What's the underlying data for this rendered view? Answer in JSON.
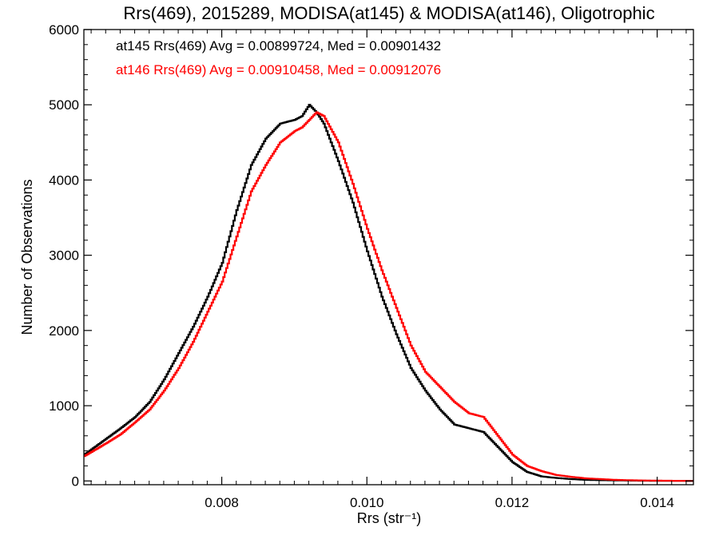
{
  "chart_data": {
    "type": "line",
    "title": "Rrs(469), 2015289, MODISA(at145) & MODISA(at146), Oligotrophic",
    "xlabel": "Rrs (str⁻¹)",
    "ylabel": "Number of Observations",
    "xlim": [
      0.0061,
      0.0145
    ],
    "ylim": [
      -50,
      6000
    ],
    "x_ticks": [
      "0.008",
      "0.010",
      "0.012",
      "0.014"
    ],
    "x_tick_values": [
      0.008,
      0.01,
      0.012,
      0.014
    ],
    "y_ticks": [
      "0",
      "1000",
      "2000",
      "3000",
      "4000",
      "5000",
      "6000"
    ],
    "y_tick_values": [
      0,
      1000,
      2000,
      3000,
      4000,
      5000,
      6000
    ],
    "grid": false,
    "legend_position": "top-left",
    "series": [
      {
        "name": "at145",
        "color": "#000000",
        "label": "at145 Rrs(469) Avg = 0.00899724, Med = 0.00901432",
        "x": [
          0.0061,
          0.0064,
          0.0066,
          0.0068,
          0.007,
          0.0072,
          0.0074,
          0.0076,
          0.0078,
          0.008,
          0.0082,
          0.0084,
          0.0086,
          0.0088,
          0.009,
          0.0091,
          0.0092,
          0.0093,
          0.0094,
          0.0096,
          0.0098,
          0.01,
          0.0102,
          0.0104,
          0.0106,
          0.0108,
          0.011,
          0.0112,
          0.0114,
          0.0116,
          0.0118,
          0.012,
          0.0122,
          0.0124,
          0.0126,
          0.0128,
          0.013,
          0.0132,
          0.0134,
          0.0136,
          0.0138,
          0.014,
          0.0145
        ],
        "y": [
          350,
          560,
          700,
          850,
          1050,
          1350,
          1700,
          2050,
          2450,
          2900,
          3600,
          4200,
          4550,
          4750,
          4800,
          4850,
          5000,
          4900,
          4750,
          4250,
          3700,
          3050,
          2450,
          1950,
          1500,
          1200,
          950,
          750,
          700,
          650,
          450,
          250,
          120,
          60,
          40,
          25,
          15,
          10,
          8,
          5,
          3,
          2,
          0
        ]
      },
      {
        "name": "at146",
        "color": "#ff0000",
        "label": "at146 Rrs(469) Avg = 0.00910458, Med = 0.00912076",
        "x": [
          0.0061,
          0.0064,
          0.0066,
          0.0068,
          0.007,
          0.0072,
          0.0074,
          0.0076,
          0.0078,
          0.008,
          0.0082,
          0.0084,
          0.0086,
          0.0088,
          0.009,
          0.0091,
          0.0092,
          0.0093,
          0.0094,
          0.0096,
          0.0098,
          0.01,
          0.0102,
          0.0104,
          0.0106,
          0.0108,
          0.011,
          0.0112,
          0.0114,
          0.0116,
          0.0118,
          0.012,
          0.0122,
          0.0124,
          0.0126,
          0.0128,
          0.013,
          0.0132,
          0.0134,
          0.0136,
          0.0138,
          0.014,
          0.0145
        ],
        "y": [
          330,
          500,
          620,
          780,
          950,
          1200,
          1500,
          1850,
          2250,
          2650,
          3250,
          3850,
          4200,
          4500,
          4650,
          4700,
          4800,
          4900,
          4850,
          4500,
          3950,
          3350,
          2800,
          2300,
          1800,
          1450,
          1250,
          1050,
          900,
          850,
          600,
          350,
          200,
          130,
          80,
          55,
          35,
          25,
          15,
          10,
          6,
          4,
          0
        ]
      }
    ]
  }
}
